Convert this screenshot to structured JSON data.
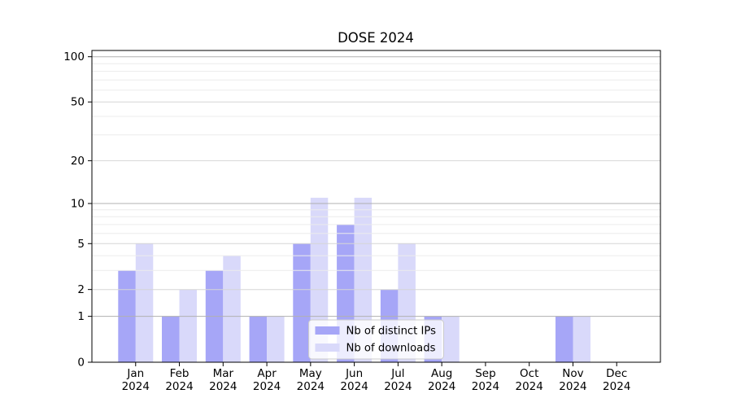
{
  "title": "DOSE 2024",
  "chart_data": {
    "type": "bar",
    "title": "DOSE 2024",
    "categories": [
      "Jan",
      "Feb",
      "Mar",
      "Apr",
      "May",
      "Jun",
      "Jul",
      "Aug",
      "Sep",
      "Oct",
      "Nov",
      "Dec"
    ],
    "x_tick_second_line": "2024",
    "series": [
      {
        "key": "distinct-ips",
        "name": "Nb of distinct IPs",
        "color": "#a6a6f7",
        "values": [
          3,
          1,
          3,
          1,
          5,
          7,
          2,
          1,
          0,
          0,
          1,
          0
        ]
      },
      {
        "key": "downloads",
        "name": "Nb of downloads",
        "color": "#d9d9fa",
        "values": [
          5,
          2,
          4,
          1,
          11,
          11,
          5,
          1,
          0,
          0,
          1,
          0
        ]
      }
    ],
    "yscale": "log1p",
    "ylim": [
      0,
      110
    ],
    "ytick_labels": [
      0,
      1,
      2,
      5,
      10,
      20,
      50,
      100
    ],
    "gridlines_major": [
      1,
      10,
      100
    ],
    "gridlines_mid": [
      2,
      5,
      20,
      50
    ],
    "gridlines_minor": [
      3,
      4,
      6,
      7,
      8,
      9,
      30,
      40,
      60,
      70,
      80,
      90
    ],
    "grid_on": true,
    "legend_position": "lower center",
    "colors": {
      "bar_ips": "#a6a6f7",
      "bar_downloads": "#d9d9fa",
      "grid_major": "#b0b0b0",
      "grid_mid": "#d6d6d6",
      "grid_minor": "#ececec",
      "spine": "#000000",
      "legend_border": "#cccccc"
    }
  }
}
